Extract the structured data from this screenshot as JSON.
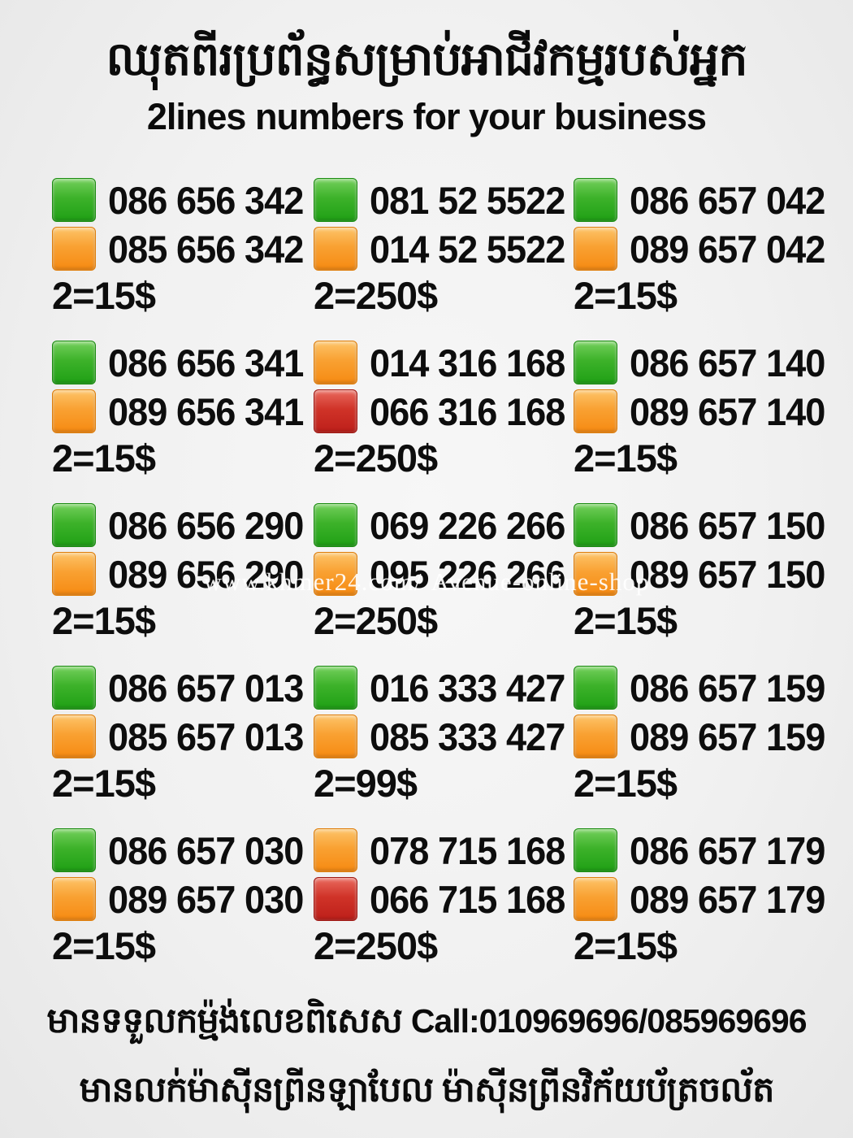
{
  "header": {
    "title_khmer": "ឈុតពីរប្រព័ន្ធសម្រាប់អាជីវកម្មរបស់អ្នក",
    "subtitle": "2lines numbers for your business"
  },
  "watermark": "www.khmer24.com/ Avenue-online-shop",
  "grid": {
    "cells": [
      {
        "lines": [
          {
            "color": "green",
            "number": "086 656 342"
          },
          {
            "color": "orange",
            "number": "085 656 342"
          }
        ],
        "price": "2=15$"
      },
      {
        "lines": [
          {
            "color": "green",
            "number": "081 52 5522"
          },
          {
            "color": "orange",
            "number": "014 52 5522"
          }
        ],
        "price": "2=250$"
      },
      {
        "lines": [
          {
            "color": "green",
            "number": "086 657 042"
          },
          {
            "color": "orange",
            "number": "089 657 042"
          }
        ],
        "price": "2=15$"
      },
      {
        "lines": [
          {
            "color": "green",
            "number": "086 656 341"
          },
          {
            "color": "orange",
            "number": "089 656 341"
          }
        ],
        "price": "2=15$"
      },
      {
        "lines": [
          {
            "color": "orange",
            "number": "014 316 168"
          },
          {
            "color": "red",
            "number": "066 316 168"
          }
        ],
        "price": "2=250$"
      },
      {
        "lines": [
          {
            "color": "green",
            "number": "086 657 140"
          },
          {
            "color": "orange",
            "number": "089 657 140"
          }
        ],
        "price": "2=15$"
      },
      {
        "lines": [
          {
            "color": "green",
            "number": "086 656 290"
          },
          {
            "color": "orange",
            "number": "089 656 290"
          }
        ],
        "price": "2=15$"
      },
      {
        "lines": [
          {
            "color": "green",
            "number": "069 226 266"
          },
          {
            "color": "orange",
            "number": "095 226 266"
          }
        ],
        "price": "2=250$"
      },
      {
        "lines": [
          {
            "color": "green",
            "number": "086 657 150"
          },
          {
            "color": "orange",
            "number": "089 657 150"
          }
        ],
        "price": "2=15$"
      },
      {
        "lines": [
          {
            "color": "green",
            "number": "086 657 013"
          },
          {
            "color": "orange",
            "number": "085 657 013"
          }
        ],
        "price": "2=15$"
      },
      {
        "lines": [
          {
            "color": "green",
            "number": "016 333 427"
          },
          {
            "color": "orange",
            "number": "085 333 427"
          }
        ],
        "price": "2=99$"
      },
      {
        "lines": [
          {
            "color": "green",
            "number": "086 657 159"
          },
          {
            "color": "orange",
            "number": "089 657 159"
          }
        ],
        "price": "2=15$"
      },
      {
        "lines": [
          {
            "color": "green",
            "number": "086 657 030"
          },
          {
            "color": "orange",
            "number": "089 657 030"
          }
        ],
        "price": "2=15$"
      },
      {
        "lines": [
          {
            "color": "orange",
            "number": "078 715 168"
          },
          {
            "color": "red",
            "number": "066 715 168"
          }
        ],
        "price": "2=250$"
      },
      {
        "lines": [
          {
            "color": "green",
            "number": "086 657 179"
          },
          {
            "color": "orange",
            "number": "089 657 179"
          }
        ],
        "price": "2=15$"
      }
    ]
  },
  "footer": {
    "line1_khmer": "មានទទួលកម្ម៉ង់លេខពិសេស",
    "call": "Call:010969696/085969696",
    "line2_khmer": "មានលក់ម៉ាស៊ីនព្រីនឡាបែល ម៉ាស៊ីនព្រីនវិក័យប័ត្រចល័ត"
  },
  "colors": {
    "chip_green": "#2fa91f",
    "chip_orange": "#f7941e",
    "chip_red": "#c7241e",
    "background": "#f1f1f1",
    "text": "#0d0d0d",
    "watermark_text": "#ffffff"
  }
}
